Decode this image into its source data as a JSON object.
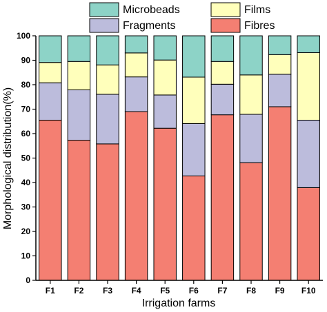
{
  "chart_data": {
    "type": "bar",
    "stacked": true,
    "xlabel": "Irrigation farms",
    "ylabel": "Morphological distribution(%)",
    "ylim": [
      0,
      100
    ],
    "yticks": [
      0,
      10,
      20,
      30,
      40,
      50,
      60,
      70,
      80,
      90,
      100
    ],
    "categories": [
      "F1",
      "F2",
      "F3",
      "F4",
      "F5",
      "F6",
      "F7",
      "F8",
      "F9",
      "F10"
    ],
    "series": [
      {
        "name": "Fibres",
        "color": "#f47f72",
        "values": [
          65.5,
          57.3,
          55.8,
          69.0,
          62.2,
          42.7,
          67.7,
          48.1,
          71.0,
          37.9
        ]
      },
      {
        "name": "Fragments",
        "color": "#bcbcdc",
        "values": [
          15.3,
          20.6,
          20.3,
          14.2,
          13.6,
          21.4,
          12.5,
          19.8,
          13.3,
          27.6
        ]
      },
      {
        "name": "Films",
        "color": "#ffffbb",
        "values": [
          8.3,
          11.6,
          12.0,
          9.8,
          14.3,
          19.0,
          9.3,
          16.1,
          8.0,
          27.6
        ]
      },
      {
        "name": "Microbeads",
        "color": "#8dd3c7",
        "values": [
          10.9,
          10.5,
          11.9,
          7.0,
          9.9,
          16.9,
          10.5,
          16.0,
          7.7,
          6.9
        ]
      }
    ],
    "legend": {
      "placement": "top-center",
      "order": [
        "Microbeads",
        "Films",
        "Fragments",
        "Fibres"
      ]
    },
    "grid": false
  }
}
